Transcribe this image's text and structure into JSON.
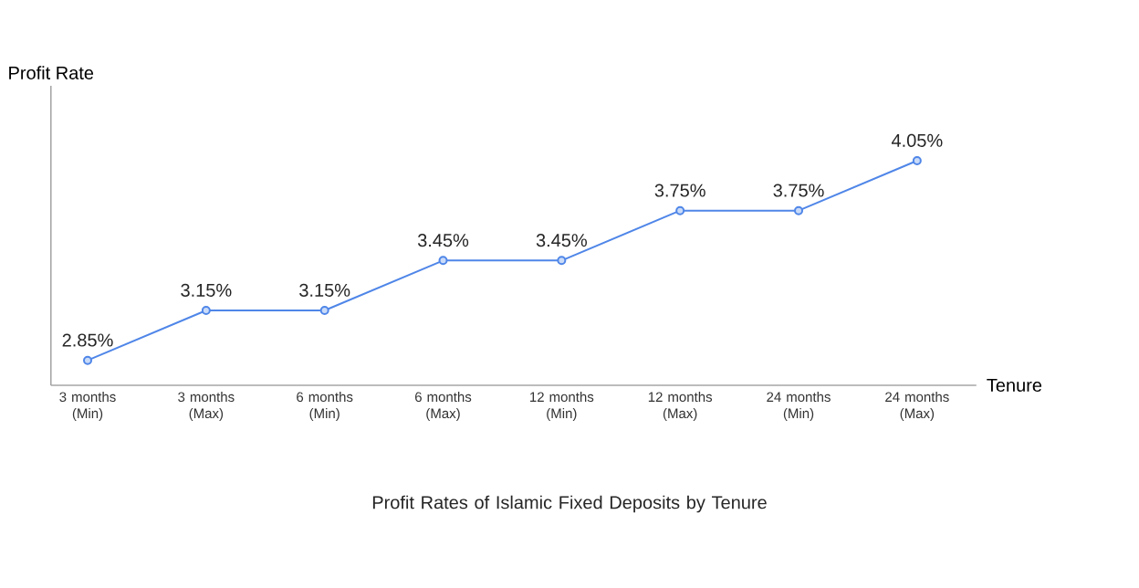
{
  "chart_data": {
    "type": "line",
    "title": "Profit Rates of Islamic Fixed Deposits by Tenure",
    "xlabel": "Tenure",
    "ylabel": "Profit Rate",
    "categories": [
      "3 months (Min)",
      "3 months (Max)",
      "6 months (Min)",
      "6 months (Max)",
      "12 months (Min)",
      "12 months (Max)",
      "24 months (Min)",
      "24 months (Max)"
    ],
    "values": [
      2.85,
      3.15,
      3.15,
      3.45,
      3.45,
      3.75,
      3.75,
      4.05
    ],
    "value_labels": [
      "2.85%",
      "3.15%",
      "3.15%",
      "3.45%",
      "3.45%",
      "3.75%",
      "3.75%",
      "4.05%"
    ],
    "color": "#4f86e8",
    "marker": "circle",
    "line_style": "solid",
    "ylim": [
      2.7,
      4.5
    ]
  }
}
